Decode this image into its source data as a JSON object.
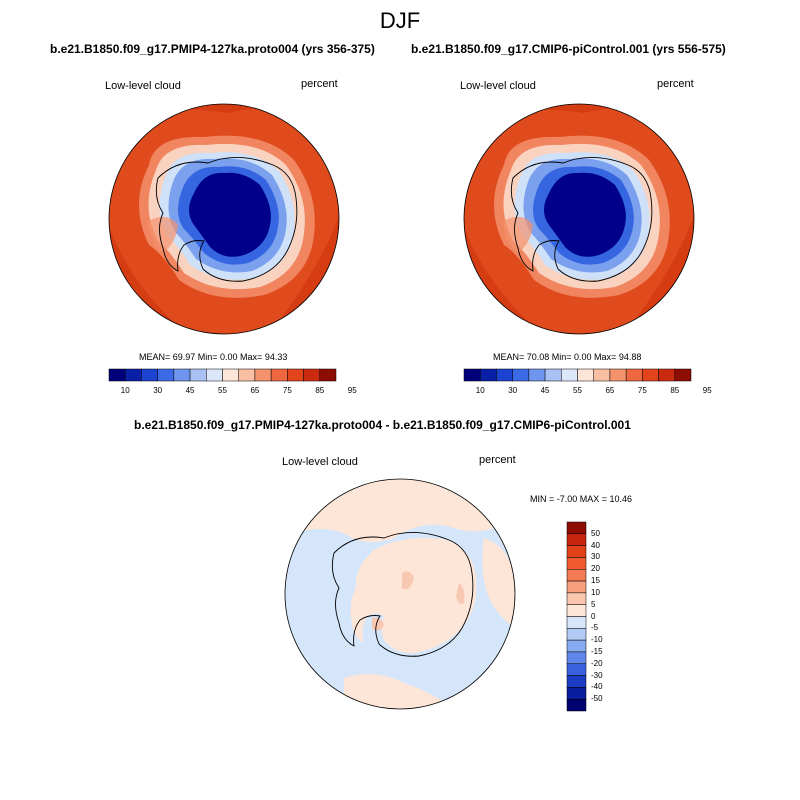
{
  "season_title": "DJF",
  "panels": {
    "left": {
      "title": "b.e21.B1850.f09_g17.PMIP4-127ka.proto004 (yrs 356-375)",
      "variable": "Low-level cloud",
      "units": "percent",
      "stats": "MEAN=  69.97  Min=   0.00  Max=  94.33"
    },
    "right": {
      "title": "b.e21.B1850.f09_g17.CMIP6-piControl.001 (yrs 556-575)",
      "variable": "Low-level cloud",
      "units": "percent",
      "stats": "MEAN=  70.08  Min=   0.00  Max=  94.88"
    },
    "diff": {
      "title": "b.e21.B1850.f09_g17.PMIP4-127ka.proto004 - b.e21.B1850.f09_g17.CMIP6-piControl.001",
      "variable": "Low-level cloud",
      "units": "percent",
      "stats": "MIN =  -7.00 MAX =  10.46"
    }
  },
  "colorbar_abs": {
    "labels": [
      "10",
      "30",
      "45",
      "55",
      "65",
      "75",
      "85",
      "95"
    ],
    "colors": [
      "#00007a",
      "#0a1fa8",
      "#1d43d1",
      "#3c6ae6",
      "#6f95ee",
      "#a9c2f3",
      "#dce7fa",
      "#fde6d7",
      "#f8bfa3",
      "#f3926d",
      "#ed6740",
      "#e4441c",
      "#cc2a0f",
      "#8e0d03"
    ]
  },
  "colorbar_diff": {
    "labels": [
      "50",
      "40",
      "30",
      "20",
      "15",
      "10",
      "5",
      "0",
      "-5",
      "-10",
      "-15",
      "-20",
      "-30",
      "-40",
      "-50"
    ],
    "colors": [
      "#8e0d03",
      "#c8260c",
      "#e24218",
      "#ef5a2e",
      "#f37a52",
      "#f7a07f",
      "#fac6ad",
      "#fde6d7",
      "#d7e6fa",
      "#b1caf4",
      "#87abf0",
      "#5f88ea",
      "#3a62e0",
      "#1d3cc5",
      "#0a1d9c",
      "#000070"
    ]
  },
  "map_colors": {
    "ocean_high": "#d63c12",
    "ocean_mid": "#e04b1d",
    "ring_1": "#f08560",
    "ring_2": "#fad2c0",
    "ring_3": "#cfe0f9",
    "ring_4": "#7aa0ee",
    "ring_5": "#3565e0",
    "ice_low": "#00008b",
    "diff_pos": "#fde6d7",
    "diff_neg": "#d6e6fa",
    "diff_strong": "#f8c8b2"
  }
}
